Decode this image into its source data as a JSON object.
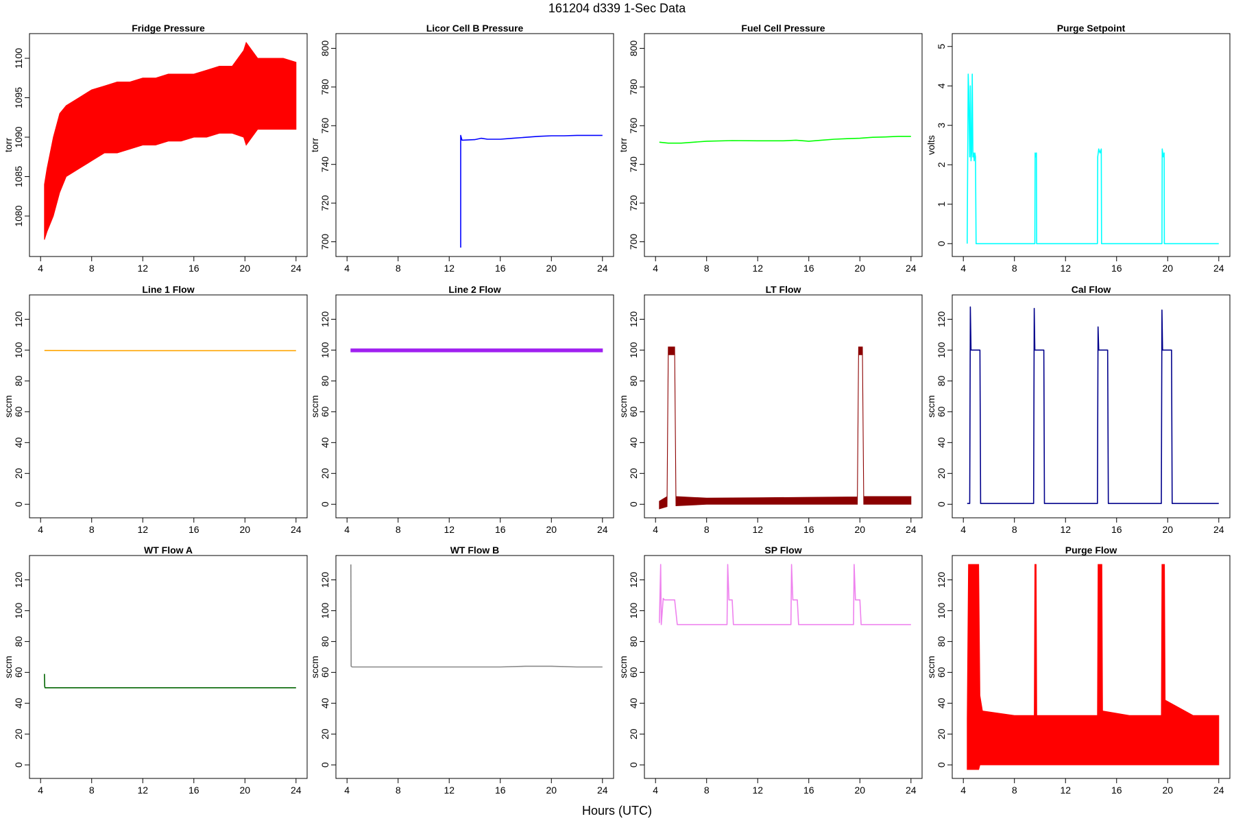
{
  "figure": {
    "title": "161204    d339    1-Sec Data",
    "xlabel": "Hours (UTC)"
  },
  "chart_data": [
    {
      "type": "line",
      "title": "Fridge Pressure",
      "ylabel": "torr",
      "color": "#ff0000",
      "band": true,
      "xlim": [
        4,
        24
      ],
      "ylim": [
        1076,
        1102
      ],
      "xticks": [
        4,
        8,
        12,
        16,
        20,
        24
      ],
      "yticks": [
        1080,
        1085,
        1090,
        1095,
        1100
      ],
      "x": [
        4.3,
        4.5,
        5,
        5.5,
        6,
        7,
        8,
        9,
        10,
        11,
        12,
        13,
        14,
        15,
        16,
        17,
        18,
        19,
        19.9,
        20.1,
        21,
        22,
        23,
        24
      ],
      "ymin": [
        1077,
        1078,
        1080,
        1083,
        1085,
        1086,
        1087,
        1088,
        1088,
        1088.5,
        1089,
        1089,
        1089.5,
        1089.5,
        1090,
        1090,
        1090.5,
        1090.5,
        1090,
        1089,
        1091,
        1091,
        1091,
        1091
      ],
      "ymax": [
        1084,
        1086,
        1090,
        1093,
        1094,
        1095,
        1096,
        1096.5,
        1097,
        1097,
        1097.5,
        1097.5,
        1098,
        1098,
        1098,
        1098.5,
        1099,
        1099,
        1101,
        1102,
        1100,
        1100,
        1100,
        1099.5
      ]
    },
    {
      "type": "line",
      "title": "Licor Cell B Pressure",
      "ylabel": "torr",
      "color": "#0000ff",
      "xlim": [
        4,
        24
      ],
      "ylim": [
        697,
        803
      ],
      "xticks": [
        4,
        8,
        12,
        16,
        20,
        24
      ],
      "yticks": [
        700,
        720,
        740,
        760,
        780,
        800
      ],
      "x": [
        12.9,
        12.9,
        13,
        14,
        14.5,
        15,
        16,
        17,
        18,
        19,
        20,
        21,
        22,
        23,
        24
      ],
      "y": [
        697,
        755,
        752.5,
        752.8,
        753.5,
        753,
        753,
        753.5,
        754,
        754.5,
        754.8,
        754.8,
        755,
        755,
        755
      ]
    },
    {
      "type": "line",
      "title": "Fuel Cell Pressure",
      "ylabel": "torr",
      "color": "#00ff00",
      "xlim": [
        4,
        24
      ],
      "ylim": [
        697,
        803
      ],
      "xticks": [
        4,
        8,
        12,
        16,
        20,
        24
      ],
      "yticks": [
        700,
        720,
        740,
        760,
        780,
        800
      ],
      "x": [
        4.3,
        5,
        6,
        7,
        8,
        10,
        12,
        14,
        15,
        16,
        17,
        18,
        19,
        20,
        21,
        22,
        23,
        24
      ],
      "y": [
        751.5,
        751,
        751,
        751.5,
        752,
        752.3,
        752.2,
        752.2,
        752.5,
        752,
        752.5,
        753,
        753.3,
        753.5,
        754,
        754.2,
        754.5,
        754.5
      ]
    },
    {
      "type": "line",
      "title": "Purge Setpoint",
      "ylabel": "volts",
      "color": "#00ffff",
      "xlim": [
        4,
        24
      ],
      "ylim": [
        -0.1,
        5.1
      ],
      "xticks": [
        4,
        8,
        12,
        16,
        20,
        24
      ],
      "yticks": [
        0,
        1,
        2,
        3,
        4,
        5
      ],
      "x": [
        4.3,
        4.38,
        4.42,
        4.5,
        4.55,
        4.6,
        4.65,
        4.7,
        4.75,
        4.8,
        4.85,
        4.9,
        4.95,
        5.0,
        5.05,
        5.1,
        5.15,
        9.6,
        9.62,
        9.68,
        9.72,
        9.74,
        14.5,
        14.52,
        14.6,
        14.7,
        14.8,
        14.82,
        19.55,
        19.57,
        19.65,
        19.72,
        19.74,
        24
      ],
      "y": [
        0,
        4.3,
        3.9,
        2.2,
        4.0,
        2.1,
        2.3,
        4.3,
        2.2,
        2.3,
        2.1,
        2.3,
        2.2,
        0,
        0,
        0,
        0,
        0,
        2.3,
        2.2,
        2.3,
        0,
        0,
        2.2,
        2.4,
        2.3,
        2.4,
        0,
        0,
        2.4,
        2.2,
        2.3,
        0,
        0
      ]
    },
    {
      "type": "line",
      "title": "Line 1 Flow",
      "ylabel": "sccm",
      "color": "#ffa500",
      "xlim": [
        4,
        24
      ],
      "ylim": [
        -3,
        130
      ],
      "xticks": [
        4,
        8,
        12,
        16,
        20,
        24
      ],
      "yticks": [
        0,
        20,
        40,
        60,
        80,
        100,
        120
      ],
      "x": [
        4.3,
        8,
        12,
        16,
        20,
        24
      ],
      "y": [
        99.7,
        99.6,
        99.6,
        99.6,
        99.6,
        99.6
      ]
    },
    {
      "type": "line",
      "title": "Line 2 Flow",
      "ylabel": "sccm",
      "color": "#a020f0",
      "band": true,
      "xlim": [
        4,
        24
      ],
      "ylim": [
        -3,
        130
      ],
      "xticks": [
        4,
        8,
        12,
        16,
        20,
        24
      ],
      "yticks": [
        0,
        20,
        40,
        60,
        80,
        100,
        120
      ],
      "x": [
        4.3,
        8,
        12,
        16,
        20,
        24
      ],
      "ymin": [
        98.8,
        98.8,
        98.8,
        98.8,
        98.8,
        98.8
      ],
      "ymax": [
        100.8,
        100.8,
        100.8,
        100.8,
        100.8,
        100.8
      ]
    },
    {
      "type": "line",
      "title": "LT Flow",
      "ylabel": "sccm",
      "color": "#8b0000",
      "band": true,
      "xlim": [
        4,
        24
      ],
      "ylim": [
        -3,
        130
      ],
      "xticks": [
        4,
        8,
        12,
        16,
        20,
        24
      ],
      "yticks": [
        0,
        20,
        40,
        60,
        80,
        100,
        120
      ],
      "x": [
        4.3,
        4.9,
        5.0,
        5.5,
        5.6,
        8,
        12,
        16,
        19.8,
        19.9,
        20.2,
        20.3,
        24
      ],
      "ymin": [
        -3,
        -1.5,
        97,
        97,
        -1,
        0,
        0,
        0,
        0,
        97,
        97,
        0,
        0
      ],
      "ymax": [
        2,
        5,
        102,
        102,
        5,
        4,
        4.2,
        4.5,
        4.8,
        102,
        102,
        5,
        5
      ]
    },
    {
      "type": "line",
      "title": "Cal Flow",
      "ylabel": "sccm",
      "color": "#00008b",
      "xlim": [
        4,
        24
      ],
      "ylim": [
        -3,
        130
      ],
      "xticks": [
        4,
        8,
        12,
        16,
        20,
        24
      ],
      "yticks": [
        0,
        20,
        40,
        60,
        80,
        100,
        120
      ],
      "x": [
        4.3,
        4.5,
        4.55,
        4.6,
        4.65,
        5.3,
        5.35,
        9.5,
        9.55,
        9.6,
        9.65,
        10.3,
        10.35,
        14.5,
        14.55,
        14.6,
        14.65,
        15.3,
        15.35,
        19.5,
        19.55,
        19.6,
        19.65,
        20.3,
        20.35,
        24
      ],
      "y": [
        0.5,
        0.5,
        128,
        100,
        100,
        100,
        0.5,
        0.5,
        127,
        100,
        100,
        100,
        0.5,
        0.5,
        115,
        100,
        100,
        100,
        0.5,
        0.5,
        126,
        100,
        100,
        100,
        0.5,
        0.5
      ]
    },
    {
      "type": "line",
      "title": "WT Flow A",
      "ylabel": "sccm",
      "color": "#006400",
      "xlim": [
        4,
        24
      ],
      "ylim": [
        -3,
        130
      ],
      "xticks": [
        4,
        8,
        12,
        16,
        20,
        24
      ],
      "yticks": [
        0,
        20,
        40,
        60,
        80,
        100,
        120
      ],
      "x": [
        4.3,
        4.32,
        4.35,
        8,
        12,
        16,
        20,
        24
      ],
      "y": [
        59,
        51,
        50,
        50,
        50,
        50,
        50,
        50
      ]
    },
    {
      "type": "line",
      "title": "WT Flow B",
      "ylabel": "sccm",
      "color": "#888888",
      "xlim": [
        4,
        24
      ],
      "ylim": [
        -3,
        130
      ],
      "xticks": [
        4,
        8,
        12,
        16,
        20,
        24
      ],
      "yticks": [
        0,
        20,
        40,
        60,
        80,
        100,
        120
      ],
      "x": [
        4.3,
        4.32,
        4.4,
        8,
        12,
        16,
        18,
        20,
        22,
        24
      ],
      "y": [
        130,
        64,
        63.5,
        63.5,
        63.5,
        63.5,
        64,
        64,
        63.5,
        63.5
      ]
    },
    {
      "type": "line",
      "title": "SP Flow",
      "ylabel": "sccm",
      "color": "#ee82ee",
      "xlim": [
        4,
        24
      ],
      "ylim": [
        -3,
        130
      ],
      "xticks": [
        4,
        8,
        12,
        16,
        20,
        24
      ],
      "yticks": [
        0,
        20,
        40,
        60,
        80,
        100,
        120
      ],
      "x": [
        4.3,
        4.4,
        4.45,
        4.6,
        4.7,
        5.5,
        5.7,
        6,
        8,
        9.6,
        9.65,
        9.75,
        10.0,
        10.1,
        12,
        14.6,
        14.65,
        14.75,
        15.1,
        15.2,
        17,
        19.5,
        19.55,
        19.65,
        20.0,
        20.1,
        22,
        24
      ],
      "y": [
        92,
        130,
        91,
        108,
        107,
        107,
        91,
        91,
        91,
        91,
        130,
        107,
        107,
        91,
        91,
        91,
        130,
        107,
        107,
        91,
        91,
        91,
        130,
        107,
        107,
        91,
        91,
        91
      ]
    },
    {
      "type": "line",
      "title": "Purge Flow",
      "ylabel": "sccm",
      "color": "#ff0000",
      "band": true,
      "xlim": [
        4,
        24
      ],
      "ylim": [
        -3,
        130
      ],
      "xticks": [
        4,
        8,
        12,
        16,
        20,
        24
      ],
      "yticks": [
        0,
        20,
        40,
        60,
        80,
        100,
        120
      ],
      "x": [
        4.3,
        4.4,
        5.2,
        5.3,
        5.5,
        8,
        9.55,
        9.6,
        9.7,
        9.75,
        12,
        14.5,
        14.55,
        14.85,
        14.9,
        17,
        19.5,
        19.55,
        19.75,
        19.8,
        22,
        24
      ],
      "ymin": [
        -3,
        -3,
        -3,
        0,
        0,
        0,
        0,
        0,
        0,
        0,
        0,
        0,
        0,
        0,
        0,
        0,
        0,
        0,
        0,
        0,
        0,
        0
      ],
      "ymax": [
        30,
        130,
        130,
        45,
        35,
        32,
        32,
        130,
        130,
        32,
        32,
        32,
        130,
        130,
        35,
        32,
        32,
        130,
        130,
        42,
        32,
        32
      ]
    }
  ]
}
